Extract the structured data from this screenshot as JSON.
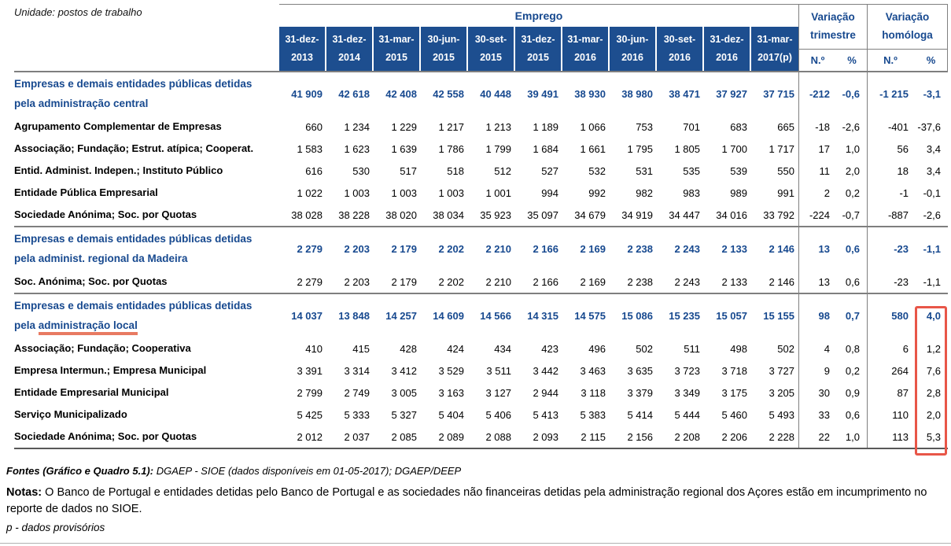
{
  "meta": {
    "unit_label": "Unidade: postos de trabalho"
  },
  "colors": {
    "header_blue": "#1d4e8f",
    "text_blue": "#17498f",
    "line_gray": "#7f7f7f",
    "annotation_red": "#e85648",
    "underline_salmon": "#e87a62"
  },
  "table": {
    "emprego_header": "Emprego",
    "variacao_trimestre": {
      "line1": "Variação",
      "line2": "trimestre"
    },
    "variacao_homologa": {
      "line1": "Variação",
      "line2": "homóloga"
    },
    "subheaders": {
      "n": "N.º",
      "pct": "%"
    },
    "date_columns": [
      {
        "line1": "31-dez-",
        "line2": "2013"
      },
      {
        "line1": "31-dez-",
        "line2": "2014"
      },
      {
        "line1": "31-mar-",
        "line2": "2015"
      },
      {
        "line1": "30-jun-",
        "line2": "2015"
      },
      {
        "line1": "30-set-",
        "line2": "2015"
      },
      {
        "line1": "31-dez-",
        "line2": "2015"
      },
      {
        "line1": "31-mar-",
        "line2": "2016"
      },
      {
        "line1": "30-jun-",
        "line2": "2016"
      },
      {
        "line1": "30-set-",
        "line2": "2016"
      },
      {
        "line1": "31-dez-",
        "line2": "2016"
      },
      {
        "line1": "31-mar-",
        "line2": "2017(p)"
      }
    ],
    "sections": [
      {
        "group": {
          "label_line1": "Empresas e demais entidades públicas detidas",
          "label_line2": "pela administração central",
          "underline_text": "",
          "values": [
            "41 909",
            "42 618",
            "42 408",
            "42 558",
            "40 448",
            "39 491",
            "38 930",
            "38 980",
            "38 471",
            "37 927",
            "37 715"
          ],
          "var_trim": [
            "-212",
            "-0,6"
          ],
          "var_hom": [
            "-1 215",
            "-3,1"
          ]
        },
        "rows": [
          {
            "label": "Agrupamento Complementar de Empresas",
            "values": [
              "660",
              "1 234",
              "1 229",
              "1 217",
              "1 213",
              "1 189",
              "1 066",
              "753",
              "701",
              "683",
              "665"
            ],
            "var_trim": [
              "-18",
              "-2,6"
            ],
            "var_hom": [
              "-401",
              "-37,6"
            ]
          },
          {
            "label": "Associação; Fundação; Estrut. atípica; Cooperat.",
            "values": [
              "1 583",
              "1 623",
              "1 639",
              "1 786",
              "1 799",
              "1 684",
              "1 661",
              "1 795",
              "1 805",
              "1 700",
              "1 717"
            ],
            "var_trim": [
              "17",
              "1,0"
            ],
            "var_hom": [
              "56",
              "3,4"
            ]
          },
          {
            "label": "Entid. Administ. Indepen.; Instituto Público",
            "values": [
              "616",
              "530",
              "517",
              "518",
              "512",
              "527",
              "532",
              "531",
              "535",
              "539",
              "550"
            ],
            "var_trim": [
              "11",
              "2,0"
            ],
            "var_hom": [
              "18",
              "3,4"
            ]
          },
          {
            "label": "Entidade Pública Empresarial",
            "values": [
              "1 022",
              "1 003",
              "1 003",
              "1 003",
              "1 001",
              "994",
              "992",
              "982",
              "983",
              "989",
              "991"
            ],
            "var_trim": [
              "2",
              "0,2"
            ],
            "var_hom": [
              "-1",
              "-0,1"
            ]
          },
          {
            "label": "Sociedade Anónima; Soc. por Quotas",
            "values": [
              "38 028",
              "38 228",
              "38 020",
              "38 034",
              "35 923",
              "35 097",
              "34 679",
              "34 919",
              "34 447",
              "34 016",
              "33 792"
            ],
            "var_trim": [
              "-224",
              "-0,7"
            ],
            "var_hom": [
              "-887",
              "-2,6"
            ]
          }
        ]
      },
      {
        "group": {
          "label_line1": "Empresas e demais entidades públicas detidas",
          "label_line2": "pela administ. regional da Madeira",
          "underline_text": "",
          "values": [
            "2 279",
            "2 203",
            "2 179",
            "2 202",
            "2 210",
            "2 166",
            "2 169",
            "2 238",
            "2 243",
            "2 133",
            "2 146"
          ],
          "var_trim": [
            "13",
            "0,6"
          ],
          "var_hom": [
            "-23",
            "-1,1"
          ]
        },
        "rows": [
          {
            "label": "Soc. Anónima; Soc. por Quotas",
            "values": [
              "2 279",
              "2 203",
              "2 179",
              "2 202",
              "2 210",
              "2 166",
              "2 169",
              "2 238",
              "2 243",
              "2 133",
              "2 146"
            ],
            "var_trim": [
              "13",
              "0,6"
            ],
            "var_hom": [
              "-23",
              "-1,1"
            ]
          }
        ]
      },
      {
        "group": {
          "label_line1": "Empresas e demais entidades públicas detidas",
          "label_line2": "pela administração local",
          "underline_text": "administração local",
          "values": [
            "14 037",
            "13 848",
            "14 257",
            "14 609",
            "14 566",
            "14 315",
            "14 575",
            "15 086",
            "15 235",
            "15 057",
            "15 155"
          ],
          "var_trim": [
            "98",
            "0,7"
          ],
          "var_hom": [
            "580",
            "4,0"
          ]
        },
        "rows": [
          {
            "label": "Associação; Fundação; Cooperativa",
            "values": [
              "410",
              "415",
              "428",
              "424",
              "434",
              "423",
              "496",
              "502",
              "511",
              "498",
              "502"
            ],
            "var_trim": [
              "4",
              "0,8"
            ],
            "var_hom": [
              "6",
              "1,2"
            ]
          },
          {
            "label": "Empresa Intermun.; Empresa Municipal",
            "values": [
              "3 391",
              "3 314",
              "3 412",
              "3 529",
              "3 511",
              "3 442",
              "3 463",
              "3 635",
              "3 723",
              "3 718",
              "3 727"
            ],
            "var_trim": [
              "9",
              "0,2"
            ],
            "var_hom": [
              "264",
              "7,6"
            ]
          },
          {
            "label": "Entidade Empresarial Municipal",
            "values": [
              "2 799",
              "2 749",
              "3 005",
              "3 163",
              "3 127",
              "2 944",
              "3 118",
              "3 379",
              "3 349",
              "3 175",
              "3 205"
            ],
            "var_trim": [
              "30",
              "0,9"
            ],
            "var_hom": [
              "87",
              "2,8"
            ]
          },
          {
            "label": "Serviço Municipalizado",
            "values": [
              "5 425",
              "5 333",
              "5 327",
              "5 404",
              "5 406",
              "5 413",
              "5 383",
              "5 414",
              "5 444",
              "5 460",
              "5 493"
            ],
            "var_trim": [
              "33",
              "0,6"
            ],
            "var_hom": [
              "110",
              "2,0"
            ]
          },
          {
            "label": "Sociedade Anónima; Soc. por Quotas",
            "values": [
              "2 012",
              "2 037",
              "2 085",
              "2 089",
              "2 088",
              "2 093",
              "2 115",
              "2 156",
              "2 208",
              "2 206",
              "2 228"
            ],
            "var_trim": [
              "22",
              "1,0"
            ],
            "var_hom": [
              "113",
              "5,3"
            ]
          }
        ]
      }
    ]
  },
  "footer": {
    "fontes_bold": "Fontes (Gráfico e Quadro 5.1):",
    "fontes_rest": " DGAEP - SIOE (dados disponíveis em 01-05-2017); DGAEP/DEEP",
    "notas_bold": "Notas:",
    "notas_rest": " O Banco de Portugal e entidades detidas pelo Banco de Portugal e as sociedades não financeiras detidas pela administração regional dos Açores estão em incumprimento no reporte de dados no SIOE.",
    "provisional": "p - dados provisórios"
  }
}
